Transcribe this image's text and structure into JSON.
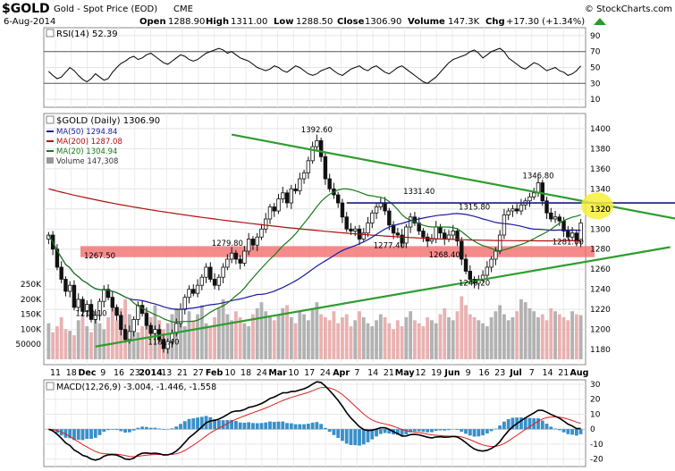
{
  "header": {
    "symbol": "$GOLD",
    "name": "Gold - Spot Price (EOD)",
    "exchange": "CME",
    "date": "6-Aug-2014",
    "source": "© StockCharts.com",
    "open_label": "Open",
    "open": "1288.90",
    "high_label": "High",
    "high": "1311.00",
    "low_label": "Low",
    "low": "1288.50",
    "close_label": "Close",
    "close": "1306.90",
    "volume_label": "Volume",
    "volume": "147.3K",
    "chg_label": "Chg",
    "chg": "+17.30 (+1.34%)"
  },
  "colors": {
    "price_up": "#ffffff",
    "price_down": "#111111",
    "ma50": "#1a1a9e",
    "ma200": "#b01010",
    "ma20": "#1a7a1a",
    "trendline": "#2e9d2e",
    "resistance": "#1a1a7a",
    "support_band": "#f26a6a",
    "highlight": "#f7f03a",
    "macd_line": "#000000",
    "signal_line": "#e02020",
    "histogram": "#3a8fc8",
    "volume_up": "#aaaaaa",
    "volume_down": "#e8a8a8"
  },
  "chart_data": [
    {
      "panel": "rsi",
      "type": "line",
      "label": "RSI(14) 52.39",
      "ylim": [
        0,
        100
      ],
      "yticks": [
        10,
        30,
        50,
        70,
        90
      ],
      "reference_lines": [
        30,
        70
      ],
      "series": [
        {
          "name": "RSI(14)",
          "last": 52.39,
          "values": [
            45,
            40,
            36,
            38,
            44,
            50,
            46,
            40,
            35,
            32,
            36,
            42,
            38,
            34,
            36,
            44,
            50,
            55,
            58,
            62,
            64,
            60,
            62,
            66,
            68,
            64,
            60,
            56,
            54,
            58,
            62,
            66,
            64,
            60,
            58,
            60,
            64,
            68,
            70,
            72,
            74,
            72,
            68,
            70,
            66,
            62,
            60,
            58,
            54,
            50,
            48,
            46,
            48,
            52,
            50,
            46,
            44,
            48,
            52,
            50,
            46,
            42,
            40,
            42,
            46,
            48,
            50,
            46,
            42,
            40,
            44,
            48,
            50,
            52,
            48,
            46,
            50,
            52,
            48,
            44,
            42,
            46,
            50,
            52,
            48,
            44,
            40,
            36,
            32,
            30,
            34,
            38,
            44,
            50,
            56,
            60,
            62,
            64,
            66,
            70,
            72,
            68,
            62,
            66,
            70,
            72,
            74,
            70,
            62,
            58,
            54,
            50,
            48,
            52,
            56,
            54,
            50,
            46,
            48,
            50,
            46,
            44,
            40,
            42,
            46,
            52
          ]
        }
      ]
    },
    {
      "panel": "price",
      "type": "candlestick",
      "title": "$GOLD (Daily) 1306.90",
      "ylim": [
        1165,
        1415
      ],
      "yticks": [
        1180,
        1200,
        1220,
        1240,
        1260,
        1280,
        1300,
        1320,
        1340,
        1360,
        1380,
        1400
      ],
      "highlight_value": "1320",
      "x_tick_labels": [
        "11",
        "18",
        "Dec",
        "9",
        "16",
        "23",
        "2014",
        "13",
        "21",
        "27",
        "Feb",
        "10",
        "18",
        "24",
        "Mar",
        "10",
        "17",
        "24",
        "Apr",
        "7",
        "14",
        "21",
        "May",
        "12",
        "19",
        "Jun",
        "9",
        "16",
        "23",
        "Jul",
        "7",
        "14",
        "21",
        "Aug"
      ],
      "legend": [
        {
          "name": "MA(50) 1294.84",
          "key": "ma50"
        },
        {
          "name": "MA(200) 1287.08",
          "key": "ma200"
        },
        {
          "name": "MA(20) 1304.94",
          "key": "ma20"
        },
        {
          "name": "Volume 147,308",
          "key": "volume"
        }
      ],
      "closes": [
        1294,
        1280,
        1262,
        1250,
        1238,
        1244,
        1222,
        1230,
        1218,
        1225,
        1210,
        1214,
        1228,
        1240,
        1232,
        1222,
        1214,
        1200,
        1190,
        1198,
        1210,
        1224,
        1216,
        1204,
        1196,
        1200,
        1190,
        1181,
        1188,
        1196,
        1206,
        1220,
        1232,
        1240,
        1236,
        1244,
        1252,
        1262,
        1250,
        1244,
        1252,
        1262,
        1270,
        1276,
        1270,
        1266,
        1278,
        1290,
        1284,
        1292,
        1300,
        1310,
        1322,
        1318,
        1330,
        1336,
        1326,
        1340,
        1338,
        1350,
        1356,
        1368,
        1382,
        1388,
        1372,
        1350,
        1340,
        1334,
        1326,
        1312,
        1300,
        1298,
        1300,
        1290,
        1296,
        1306,
        1316,
        1322,
        1326,
        1318,
        1304,
        1296,
        1294,
        1286,
        1302,
        1312,
        1306,
        1298,
        1292,
        1288,
        1290,
        1302,
        1296,
        1290,
        1294,
        1298,
        1288,
        1270,
        1258,
        1250,
        1246,
        1250,
        1254,
        1262,
        1270,
        1278,
        1294,
        1314,
        1318,
        1320,
        1318,
        1324,
        1328,
        1332,
        1336,
        1346,
        1328,
        1316,
        1310,
        1312,
        1308,
        1298,
        1292,
        1296,
        1288,
        1306
      ],
      "series": [
        {
          "name": "MA(50)",
          "last": 1294.84
        },
        {
          "name": "MA(200)",
          "last": 1287.08
        },
        {
          "name": "MA(20)",
          "last": 1304.94
        }
      ],
      "annotations": [
        {
          "text": "1392.60",
          "index": 63,
          "value": 1392.6
        },
        {
          "text": "1331.40",
          "index": 87,
          "value": 1331.4
        },
        {
          "text": "1346.80",
          "index": 115,
          "value": 1346.8
        },
        {
          "text": "1315.80",
          "index": 100,
          "value": 1315.8
        },
        {
          "text": "1279.80",
          "index": 42,
          "value": 1279.8
        },
        {
          "text": "1267.50",
          "index": 12,
          "value": 1267.5
        },
        {
          "text": "1277.40",
          "index": 80,
          "value": 1277.4
        },
        {
          "text": "1268.40",
          "index": 93,
          "value": 1268.4
        },
        {
          "text": "1281.00",
          "index": 122,
          "value": 1281.0
        },
        {
          "text": "1240.20",
          "index": 100,
          "value": 1240.2
        },
        {
          "text": "1210.10",
          "index": 10,
          "value": 1210.1
        },
        {
          "text": "1181.40",
          "index": 27,
          "value": 1181.4
        }
      ],
      "trendlines": [
        {
          "name": "downtrend",
          "from": {
            "index": 43,
            "value": 1394
          },
          "to": {
            "index": 154,
            "value": 1305
          }
        },
        {
          "name": "uptrend",
          "from": {
            "index": 11,
            "value": 1183
          },
          "to": {
            "index": 146,
            "value": 1282
          }
        },
        {
          "name": "resistance",
          "from": {
            "index": 70,
            "value": 1326
          },
          "to": {
            "index": 154,
            "value": 1326
          }
        }
      ],
      "support_zone": [
        1272,
        1283
      ]
    },
    {
      "panel": "volume",
      "type": "bar",
      "label": "Volume",
      "ylim": [
        0,
        250000
      ],
      "ytick_labels": [
        "50000",
        "100K",
        "150K",
        "200K",
        "250K"
      ],
      "yticks": [
        50000,
        100000,
        150000,
        200000,
        250000
      ],
      "values": [
        120,
        90,
        110,
        140,
        100,
        95,
        80,
        130,
        150,
        110,
        90,
        160,
        120,
        100,
        140,
        180,
        130,
        170,
        200,
        150,
        120,
        90,
        110,
        160,
        140,
        180,
        130,
        100,
        120,
        150,
        170,
        140,
        110,
        160,
        130,
        150,
        180,
        120,
        110,
        140,
        170,
        200,
        150,
        130,
        160,
        140,
        120,
        110,
        150,
        170,
        190,
        160,
        140,
        130,
        150,
        170,
        180,
        140,
        120,
        160,
        150,
        130,
        170,
        190,
        150,
        140,
        130,
        160,
        120,
        140,
        150,
        110,
        130,
        160,
        140,
        120,
        110,
        130,
        150,
        140,
        120,
        100,
        130,
        110,
        140,
        160,
        130,
        120,
        110,
        140,
        130,
        120,
        150,
        170,
        140,
        130,
        160,
        210,
        180,
        150,
        140,
        130,
        120,
        110,
        140,
        160,
        180,
        150,
        130,
        140,
        160,
        200,
        190,
        170,
        160,
        140,
        150,
        130,
        170,
        160,
        150,
        140,
        130,
        160,
        150,
        147
      ]
    },
    {
      "panel": "macd",
      "type": "line",
      "label": "MACD(12,26,9) -3.004, -1.446, -1.558",
      "ylim": [
        -25,
        33
      ],
      "yticks": [
        -20,
        -10,
        0,
        10,
        20,
        30
      ],
      "series": [
        {
          "name": "MACD",
          "last": -3.004
        },
        {
          "name": "Signal",
          "last": -1.446
        },
        {
          "name": "Histogram",
          "last": -1.558
        }
      ]
    }
  ]
}
